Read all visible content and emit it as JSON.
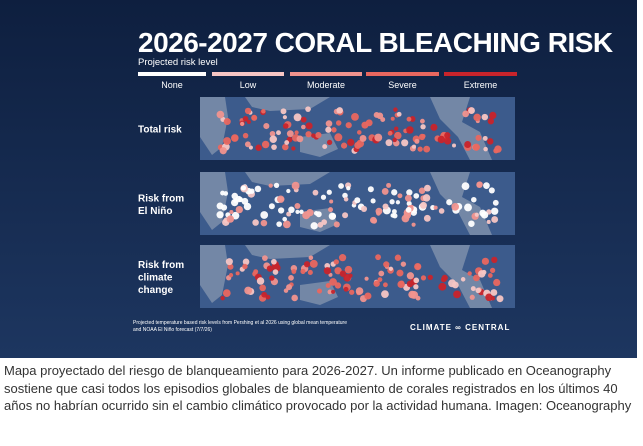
{
  "infographic": {
    "title": "2026-2027 CORAL BLEACHING RISK",
    "legend_title": "Projected risk level",
    "legend": [
      {
        "label": "None",
        "color": "#ffffff"
      },
      {
        "label": "Low",
        "color": "#f7c6c4"
      },
      {
        "label": "Moderate",
        "color": "#f1938e"
      },
      {
        "label": "Severe",
        "color": "#e9675f"
      },
      {
        "label": "Extreme",
        "color": "#c8242b"
      }
    ],
    "rows": [
      {
        "label": [
          "Total risk"
        ]
      },
      {
        "label": [
          "Risk from",
          "El Niño"
        ]
      },
      {
        "label": [
          "Risk from",
          "climate",
          "change"
        ]
      }
    ],
    "footnote": [
      "Projected temperature based risk levels from Pershing et al 2026 using global mean temperature",
      "and NOAA El Niño forecast (7/7/26)"
    ],
    "brand": "CLIMATE ∞ CENTRAL"
  },
  "caption": "Mapa proyectado del riesgo de blanqueamiento para 2026-2027. Un informe publicado en Oceanography sostiene que casi todos los episodios globales de blanqueamiento de corales registrados en los últimos 40 años no habrían ocurrido sin el cambio climático provocado por la actividad humana. Imagen: Oceanography"
}
